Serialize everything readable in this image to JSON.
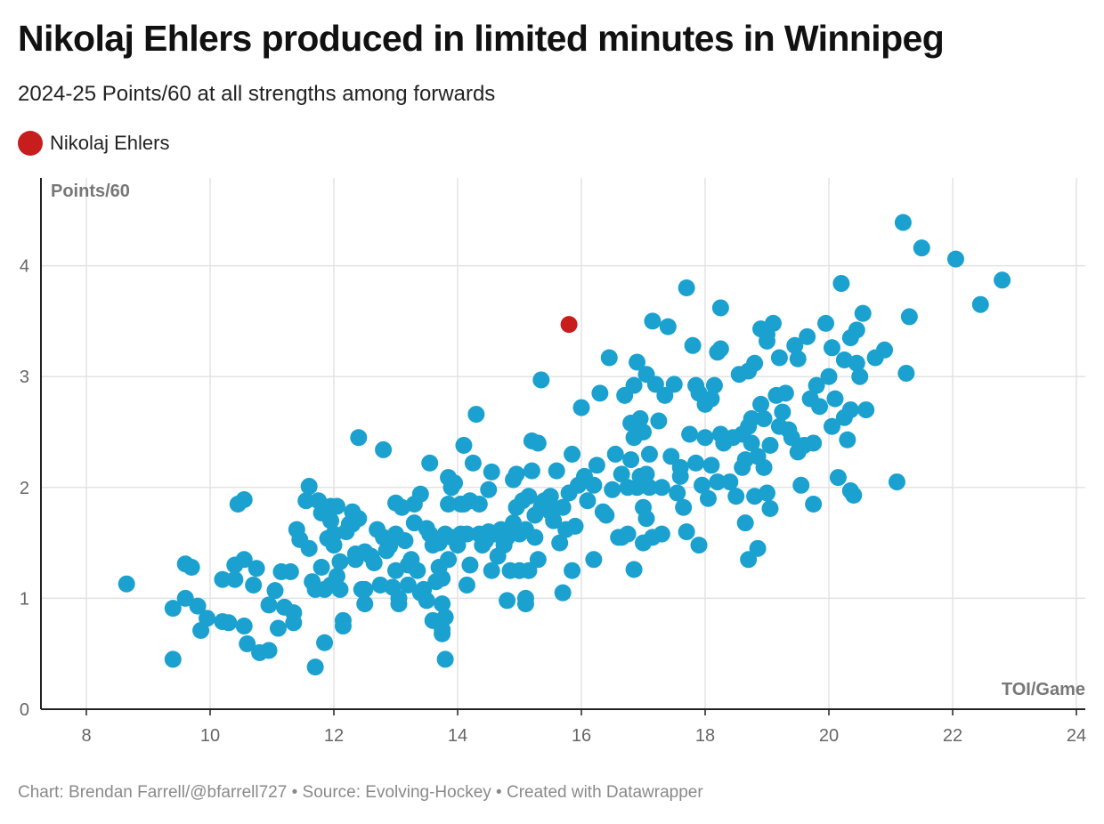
{
  "chart_data": {
    "type": "scatter",
    "title": "Nikolaj Ehlers produced in limited minutes in Winnipeg",
    "subtitle": "2024-25 Points/60 at all strengths among forwards",
    "xlabel": "TOI/Game",
    "ylabel": "Points/60",
    "xlim": [
      7.3,
      24.2
    ],
    "ylim": [
      0,
      4.8
    ],
    "xticks": [
      8,
      10,
      12,
      14,
      16,
      18,
      20,
      22,
      24
    ],
    "yticks": [
      0,
      1,
      2,
      3,
      4
    ],
    "colors": {
      "default": "#1aa1cf",
      "highlight": "#c71e1d",
      "grid": "#e3e3e3",
      "axis": "#222222"
    },
    "legend": [
      {
        "name": "Nikolaj Ehlers",
        "color": "#c71e1d"
      }
    ],
    "highlight": {
      "name": "Nikolaj Ehlers",
      "x": 15.8,
      "y": 3.47
    },
    "points": [
      [
        8.65,
        1.13
      ],
      [
        9.4,
        0.91
      ],
      [
        9.4,
        0.45
      ],
      [
        9.6,
        1.0
      ],
      [
        9.6,
        1.31
      ],
      [
        9.7,
        1.28
      ],
      [
        9.8,
        0.93
      ],
      [
        9.85,
        0.71
      ],
      [
        9.95,
        0.82
      ],
      [
        10.2,
        1.17
      ],
      [
        10.2,
        0.79
      ],
      [
        10.3,
        0.78
      ],
      [
        10.4,
        1.17
      ],
      [
        10.4,
        1.3
      ],
      [
        10.45,
        1.85
      ],
      [
        10.55,
        1.89
      ],
      [
        10.55,
        0.75
      ],
      [
        10.55,
        1.35
      ],
      [
        10.6,
        0.59
      ],
      [
        10.7,
        1.12
      ],
      [
        10.75,
        1.27
      ],
      [
        10.8,
        0.51
      ],
      [
        10.95,
        0.53
      ],
      [
        10.95,
        0.94
      ],
      [
        11.05,
        1.07
      ],
      [
        11.1,
        0.73
      ],
      [
        11.15,
        1.24
      ],
      [
        11.2,
        0.92
      ],
      [
        11.3,
        1.24
      ],
      [
        11.35,
        0.78
      ],
      [
        11.35,
        0.87
      ],
      [
        11.4,
        1.62
      ],
      [
        11.45,
        1.53
      ],
      [
        11.55,
        1.88
      ],
      [
        11.6,
        2.01
      ],
      [
        11.6,
        1.45
      ],
      [
        11.65,
        1.15
      ],
      [
        11.7,
        1.08
      ],
      [
        11.7,
        0.38
      ],
      [
        11.75,
        1.88
      ],
      [
        11.8,
        1.77
      ],
      [
        11.8,
        1.28
      ],
      [
        11.85,
        1.08
      ],
      [
        11.85,
        0.6
      ],
      [
        11.9,
        1.54
      ],
      [
        11.95,
        1.83
      ],
      [
        11.95,
        1.12
      ],
      [
        11.95,
        1.7
      ],
      [
        12.0,
        1.58
      ],
      [
        12.0,
        1.48
      ],
      [
        12.05,
        1.83
      ],
      [
        12.05,
        1.2
      ],
      [
        12.1,
        1.33
      ],
      [
        12.1,
        1.08
      ],
      [
        12.15,
        0.8
      ],
      [
        12.15,
        0.75
      ],
      [
        12.2,
        1.6
      ],
      [
        12.25,
        1.67
      ],
      [
        12.3,
        1.67
      ],
      [
        12.3,
        1.78
      ],
      [
        12.35,
        1.35
      ],
      [
        12.35,
        1.4
      ],
      [
        12.4,
        1.72
      ],
      [
        12.4,
        2.45
      ],
      [
        12.45,
        1.08
      ],
      [
        12.5,
        1.08
      ],
      [
        12.5,
        0.95
      ],
      [
        12.5,
        1.42
      ],
      [
        12.6,
        1.38
      ],
      [
        12.65,
        1.32
      ],
      [
        12.7,
        1.62
      ],
      [
        12.75,
        1.12
      ],
      [
        12.8,
        1.55
      ],
      [
        12.8,
        2.34
      ],
      [
        12.85,
        1.43
      ],
      [
        12.9,
        1.47
      ],
      [
        12.95,
        1.1
      ],
      [
        13.0,
        1.86
      ],
      [
        13.0,
        1.58
      ],
      [
        13.0,
        1.25
      ],
      [
        13.05,
        0.95
      ],
      [
        13.05,
        1.0
      ],
      [
        13.1,
        1.82
      ],
      [
        13.15,
        1.52
      ],
      [
        13.2,
        1.12
      ],
      [
        13.2,
        1.3
      ],
      [
        13.25,
        1.35
      ],
      [
        13.3,
        1.85
      ],
      [
        13.3,
        1.68
      ],
      [
        13.35,
        1.25
      ],
      [
        13.4,
        1.94
      ],
      [
        13.4,
        1.05
      ],
      [
        13.45,
        1.08
      ],
      [
        13.5,
        1.63
      ],
      [
        13.5,
        0.98
      ],
      [
        13.55,
        1.58
      ],
      [
        13.55,
        2.22
      ],
      [
        13.6,
        1.48
      ],
      [
        13.6,
        0.8
      ],
      [
        13.65,
        1.15
      ],
      [
        13.7,
        1.5
      ],
      [
        13.7,
        1.28
      ],
      [
        13.75,
        1.18
      ],
      [
        13.75,
        0.95
      ],
      [
        13.75,
        0.72
      ],
      [
        13.75,
        0.68
      ],
      [
        13.8,
        1.58
      ],
      [
        13.8,
        0.83
      ],
      [
        13.8,
        0.45
      ],
      [
        13.85,
        2.09
      ],
      [
        13.85,
        1.85
      ],
      [
        13.85,
        1.35
      ],
      [
        13.9,
        2.0
      ],
      [
        13.9,
        1.55
      ],
      [
        13.95,
        2.04
      ],
      [
        14.0,
        1.48
      ],
      [
        14.05,
        1.85
      ],
      [
        14.05,
        1.58
      ],
      [
        14.1,
        2.38
      ],
      [
        14.1,
        1.85
      ],
      [
        14.15,
        1.12
      ],
      [
        14.15,
        1.58
      ],
      [
        14.2,
        1.3
      ],
      [
        14.2,
        1.88
      ],
      [
        14.25,
        2.22
      ],
      [
        14.3,
        2.66
      ],
      [
        14.35,
        1.85
      ],
      [
        14.35,
        1.58
      ],
      [
        14.4,
        1.48
      ],
      [
        14.45,
        1.52
      ],
      [
        14.5,
        1.98
      ],
      [
        14.5,
        1.6
      ],
      [
        14.55,
        2.14
      ],
      [
        14.55,
        1.25
      ],
      [
        14.6,
        1.58
      ],
      [
        14.65,
        1.38
      ],
      [
        14.7,
        1.62
      ],
      [
        14.75,
        1.48
      ],
      [
        14.8,
        0.98
      ],
      [
        14.8,
        1.55
      ],
      [
        14.85,
        1.25
      ],
      [
        14.9,
        2.07
      ],
      [
        14.9,
        1.68
      ],
      [
        14.95,
        2.12
      ],
      [
        14.95,
        1.82
      ],
      [
        15.0,
        1.58
      ],
      [
        15.0,
        1.25
      ],
      [
        15.05,
        1.88
      ],
      [
        15.1,
        1.62
      ],
      [
        15.1,
        1.0
      ],
      [
        15.1,
        0.95
      ],
      [
        15.15,
        1.25
      ],
      [
        15.15,
        1.92
      ],
      [
        15.2,
        2.42
      ],
      [
        15.2,
        2.15
      ],
      [
        15.25,
        1.55
      ],
      [
        15.25,
        1.75
      ],
      [
        15.3,
        1.35
      ],
      [
        15.3,
        2.4
      ],
      [
        15.35,
        1.82
      ],
      [
        15.35,
        2.97
      ],
      [
        15.4,
        1.88
      ],
      [
        15.45,
        1.85
      ],
      [
        15.5,
        1.78
      ],
      [
        15.5,
        1.92
      ],
      [
        15.55,
        1.7
      ],
      [
        15.6,
        2.15
      ],
      [
        15.65,
        1.5
      ],
      [
        15.7,
        1.05
      ],
      [
        15.7,
        1.82
      ],
      [
        15.75,
        1.62
      ],
      [
        15.8,
        1.95
      ],
      [
        15.85,
        1.25
      ],
      [
        15.85,
        2.3
      ],
      [
        15.9,
        1.65
      ],
      [
        15.95,
        2.02
      ],
      [
        16.0,
        2.72
      ],
      [
        16.05,
        2.1
      ],
      [
        16.1,
        1.88
      ],
      [
        16.2,
        2.02
      ],
      [
        16.2,
        1.35
      ],
      [
        16.25,
        2.2
      ],
      [
        16.3,
        2.85
      ],
      [
        16.35,
        1.78
      ],
      [
        16.4,
        1.75
      ],
      [
        16.45,
        3.17
      ],
      [
        16.5,
        1.98
      ],
      [
        16.55,
        2.3
      ],
      [
        16.6,
        1.55
      ],
      [
        16.65,
        2.12
      ],
      [
        16.65,
        1.55
      ],
      [
        16.7,
        2.83
      ],
      [
        16.75,
        2.0
      ],
      [
        16.75,
        1.58
      ],
      [
        16.8,
        2.25
      ],
      [
        16.8,
        2.58
      ],
      [
        16.85,
        2.45
      ],
      [
        16.85,
        2.92
      ],
      [
        16.85,
        1.26
      ],
      [
        16.9,
        3.13
      ],
      [
        16.9,
        2.0
      ],
      [
        16.95,
        2.62
      ],
      [
        16.95,
        2.1
      ],
      [
        17.0,
        1.5
      ],
      [
        17.0,
        1.82
      ],
      [
        17.0,
        2.5
      ],
      [
        17.05,
        2.12
      ],
      [
        17.05,
        3.02
      ],
      [
        17.05,
        1.72
      ],
      [
        17.1,
        2.3
      ],
      [
        17.1,
        2.0
      ],
      [
        17.15,
        3.5
      ],
      [
        17.15,
        1.55
      ],
      [
        17.2,
        2.93
      ],
      [
        17.25,
        2.6
      ],
      [
        17.3,
        2.0
      ],
      [
        17.3,
        1.58
      ],
      [
        17.35,
        2.83
      ],
      [
        17.4,
        3.45
      ],
      [
        17.45,
        2.28
      ],
      [
        17.5,
        2.93
      ],
      [
        17.55,
        1.95
      ],
      [
        17.6,
        2.1
      ],
      [
        17.6,
        2.18
      ],
      [
        17.65,
        1.82
      ],
      [
        17.7,
        3.8
      ],
      [
        17.7,
        1.6
      ],
      [
        17.75,
        2.48
      ],
      [
        17.8,
        3.28
      ],
      [
        17.85,
        2.92
      ],
      [
        17.85,
        2.22
      ],
      [
        17.9,
        1.48
      ],
      [
        17.9,
        2.85
      ],
      [
        17.95,
        2.02
      ],
      [
        18.0,
        2.45
      ],
      [
        18.0,
        2.75
      ],
      [
        18.05,
        1.9
      ],
      [
        18.1,
        2.8
      ],
      [
        18.1,
        2.2
      ],
      [
        18.15,
        2.92
      ],
      [
        18.2,
        3.22
      ],
      [
        18.2,
        2.05
      ],
      [
        18.25,
        3.25
      ],
      [
        18.25,
        3.62
      ],
      [
        18.25,
        2.48
      ],
      [
        18.3,
        2.4
      ],
      [
        18.4,
        2.05
      ],
      [
        18.45,
        2.45
      ],
      [
        18.5,
        1.92
      ],
      [
        18.55,
        3.02
      ],
      [
        18.6,
        2.48
      ],
      [
        18.6,
        2.18
      ],
      [
        18.65,
        2.25
      ],
      [
        18.65,
        1.68
      ],
      [
        18.7,
        3.05
      ],
      [
        18.7,
        2.55
      ],
      [
        18.7,
        1.35
      ],
      [
        18.75,
        2.4
      ],
      [
        18.75,
        2.62
      ],
      [
        18.8,
        3.12
      ],
      [
        18.8,
        1.92
      ],
      [
        18.85,
        2.28
      ],
      [
        18.85,
        1.45
      ],
      [
        18.9,
        2.75
      ],
      [
        18.9,
        3.43
      ],
      [
        18.95,
        2.18
      ],
      [
        18.95,
        2.62
      ],
      [
        19.0,
        3.38
      ],
      [
        19.0,
        1.95
      ],
      [
        19.0,
        3.32
      ],
      [
        19.05,
        2.38
      ],
      [
        19.05,
        1.81
      ],
      [
        19.1,
        3.48
      ],
      [
        19.15,
        2.83
      ],
      [
        19.2,
        2.55
      ],
      [
        19.2,
        3.17
      ],
      [
        19.25,
        2.68
      ],
      [
        19.3,
        2.85
      ],
      [
        19.35,
        2.52
      ],
      [
        19.4,
        2.45
      ],
      [
        19.45,
        3.28
      ],
      [
        19.5,
        2.32
      ],
      [
        19.5,
        3.16
      ],
      [
        19.55,
        2.02
      ],
      [
        19.6,
        2.38
      ],
      [
        19.65,
        3.36
      ],
      [
        19.7,
        2.8
      ],
      [
        19.75,
        2.4
      ],
      [
        19.75,
        1.85
      ],
      [
        19.8,
        2.92
      ],
      [
        19.85,
        2.73
      ],
      [
        19.95,
        3.48
      ],
      [
        20.0,
        3.0
      ],
      [
        20.05,
        2.55
      ],
      [
        20.05,
        3.26
      ],
      [
        20.1,
        2.8
      ],
      [
        20.15,
        2.09
      ],
      [
        20.2,
        3.84
      ],
      [
        20.25,
        3.15
      ],
      [
        20.25,
        2.63
      ],
      [
        20.3,
        2.43
      ],
      [
        20.35,
        1.97
      ],
      [
        20.35,
        3.35
      ],
      [
        20.35,
        2.7
      ],
      [
        20.4,
        1.93
      ],
      [
        20.45,
        3.42
      ],
      [
        20.45,
        3.12
      ],
      [
        20.5,
        3.0
      ],
      [
        20.55,
        3.57
      ],
      [
        20.6,
        2.7
      ],
      [
        20.75,
        3.17
      ],
      [
        20.9,
        3.24
      ],
      [
        21.1,
        2.05
      ],
      [
        21.2,
        4.39
      ],
      [
        21.25,
        3.03
      ],
      [
        21.3,
        3.54
      ],
      [
        21.5,
        4.16
      ],
      [
        22.05,
        4.06
      ],
      [
        22.45,
        3.65
      ],
      [
        22.8,
        3.87
      ]
    ],
    "source": "Chart: Brendan Farrell/@bfarrell727 • Source: Evolving-Hockey • Created with Datawrapper"
  }
}
